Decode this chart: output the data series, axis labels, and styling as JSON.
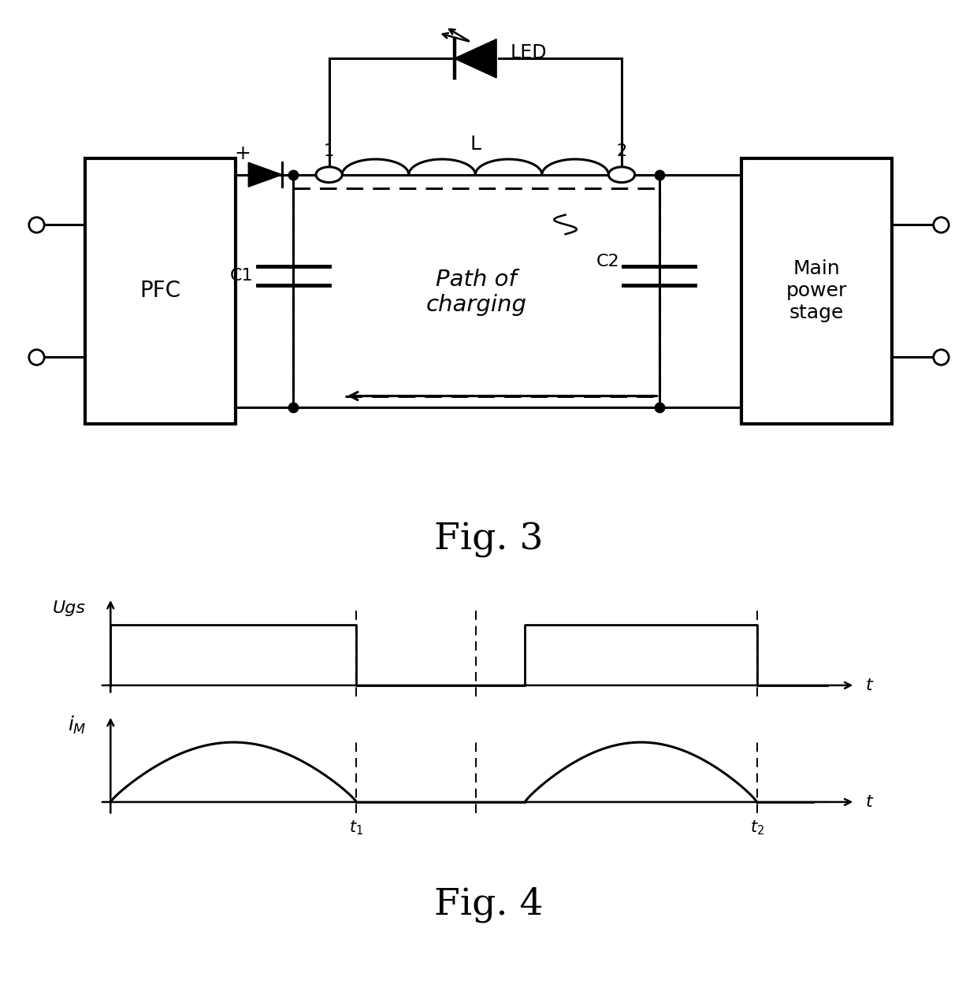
{
  "fig3_title": "Fig. 3",
  "fig4_title": "Fig. 4",
  "background_color": "#ffffff",
  "line_color": "#000000",
  "ugs_label": "Ugs",
  "t_label": "t",
  "t1_label": "$t_1$",
  "t2_label": "$t_2$",
  "pfc_label": "PFC",
  "main_stage_label": "Main\npower\nstage",
  "c1_label": "C1",
  "c2_label": "C2",
  "l_label": "L",
  "led_label": "LED",
  "path_label": "Path of\ncharging",
  "node1_label": "1",
  "node2_label": "2",
  "plus_label": "+"
}
